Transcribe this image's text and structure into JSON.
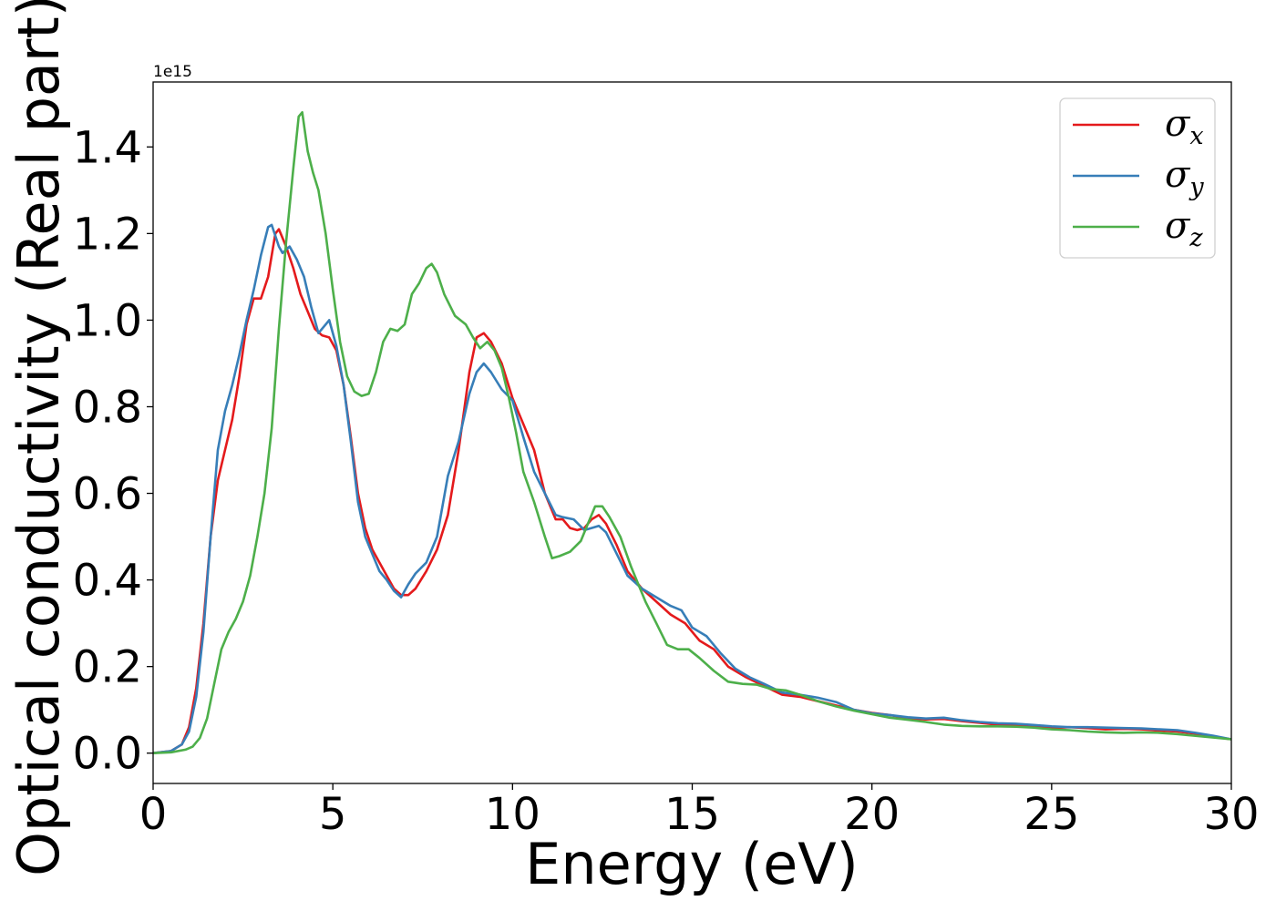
{
  "chart_data": {
    "type": "line",
    "xlabel": "Energy (eV)",
    "ylabel": "Optical conductivity (Real part)",
    "y_offset_label": "1e15",
    "xlim": [
      0,
      30
    ],
    "ylim": [
      -0.07,
      1.55
    ],
    "x_ticks": [
      0,
      5,
      10,
      15,
      20,
      25,
      30
    ],
    "x_tick_labels": [
      "0",
      "5",
      "10",
      "15",
      "20",
      "25",
      "30"
    ],
    "y_ticks": [
      0.0,
      0.2,
      0.4,
      0.6,
      0.8,
      1.0,
      1.2,
      1.4
    ],
    "y_tick_labels": [
      "0.0",
      "0.2",
      "0.4",
      "0.6",
      "0.8",
      "1.0",
      "1.2",
      "1.4"
    ],
    "grid": false,
    "legend_position": "top-right",
    "series": [
      {
        "name": "σx",
        "symbol": "σ",
        "subscript": "x",
        "color": "#e41a1c",
        "points": [
          [
            0,
            0
          ],
          [
            0.5,
            0.005
          ],
          [
            0.8,
            0.02
          ],
          [
            1.0,
            0.06
          ],
          [
            1.2,
            0.15
          ],
          [
            1.4,
            0.3
          ],
          [
            1.6,
            0.5
          ],
          [
            1.8,
            0.63
          ],
          [
            2.0,
            0.7
          ],
          [
            2.2,
            0.77
          ],
          [
            2.4,
            0.87
          ],
          [
            2.6,
            0.99
          ],
          [
            2.8,
            1.05
          ],
          [
            3.0,
            1.05
          ],
          [
            3.2,
            1.1
          ],
          [
            3.4,
            1.2
          ],
          [
            3.5,
            1.21
          ],
          [
            3.7,
            1.17
          ],
          [
            3.9,
            1.12
          ],
          [
            4.1,
            1.06
          ],
          [
            4.3,
            1.02
          ],
          [
            4.5,
            0.98
          ],
          [
            4.7,
            0.965
          ],
          [
            4.9,
            0.96
          ],
          [
            5.1,
            0.93
          ],
          [
            5.3,
            0.85
          ],
          [
            5.5,
            0.73
          ],
          [
            5.7,
            0.6
          ],
          [
            5.9,
            0.52
          ],
          [
            6.1,
            0.47
          ],
          [
            6.3,
            0.44
          ],
          [
            6.5,
            0.41
          ],
          [
            6.7,
            0.38
          ],
          [
            6.9,
            0.365
          ],
          [
            7.1,
            0.365
          ],
          [
            7.3,
            0.38
          ],
          [
            7.6,
            0.42
          ],
          [
            7.9,
            0.47
          ],
          [
            8.2,
            0.55
          ],
          [
            8.5,
            0.7
          ],
          [
            8.8,
            0.88
          ],
          [
            9.0,
            0.96
          ],
          [
            9.2,
            0.97
          ],
          [
            9.4,
            0.95
          ],
          [
            9.7,
            0.9
          ],
          [
            10.0,
            0.82
          ],
          [
            10.3,
            0.76
          ],
          [
            10.6,
            0.7
          ],
          [
            10.9,
            0.6
          ],
          [
            11.2,
            0.54
          ],
          [
            11.4,
            0.54
          ],
          [
            11.6,
            0.52
          ],
          [
            11.8,
            0.515
          ],
          [
            12.0,
            0.52
          ],
          [
            12.2,
            0.54
          ],
          [
            12.4,
            0.55
          ],
          [
            12.6,
            0.53
          ],
          [
            12.9,
            0.48
          ],
          [
            13.2,
            0.42
          ],
          [
            13.6,
            0.38
          ],
          [
            14.0,
            0.35
          ],
          [
            14.4,
            0.32
          ],
          [
            14.8,
            0.3
          ],
          [
            15.2,
            0.26
          ],
          [
            15.6,
            0.24
          ],
          [
            16.0,
            0.2
          ],
          [
            16.5,
            0.175
          ],
          [
            17.0,
            0.155
          ],
          [
            17.5,
            0.135
          ],
          [
            18.0,
            0.13
          ],
          [
            18.5,
            0.12
          ],
          [
            19.0,
            0.11
          ],
          [
            19.5,
            0.1
          ],
          [
            20.0,
            0.093
          ],
          [
            20.5,
            0.088
          ],
          [
            21.0,
            0.08
          ],
          [
            21.5,
            0.078
          ],
          [
            22.0,
            0.079
          ],
          [
            22.5,
            0.074
          ],
          [
            23.0,
            0.07
          ],
          [
            23.5,
            0.066
          ],
          [
            24.0,
            0.065
          ],
          [
            24.5,
            0.062
          ],
          [
            25.0,
            0.058
          ],
          [
            25.5,
            0.06
          ],
          [
            26.0,
            0.058
          ],
          [
            26.5,
            0.055
          ],
          [
            27.0,
            0.056
          ],
          [
            27.5,
            0.055
          ],
          [
            28.0,
            0.052
          ],
          [
            28.5,
            0.05
          ],
          [
            29.0,
            0.045
          ],
          [
            29.5,
            0.038
          ],
          [
            30.0,
            0.032
          ]
        ]
      },
      {
        "name": "σy",
        "symbol": "σ",
        "subscript": "y",
        "color": "#377eb8",
        "points": [
          [
            0,
            0
          ],
          [
            0.5,
            0.005
          ],
          [
            0.8,
            0.02
          ],
          [
            1.0,
            0.05
          ],
          [
            1.2,
            0.13
          ],
          [
            1.4,
            0.28
          ],
          [
            1.6,
            0.5
          ],
          [
            1.8,
            0.7
          ],
          [
            2.0,
            0.79
          ],
          [
            2.2,
            0.85
          ],
          [
            2.4,
            0.92
          ],
          [
            2.6,
            1.0
          ],
          [
            2.8,
            1.07
          ],
          [
            3.0,
            1.15
          ],
          [
            3.2,
            1.215
          ],
          [
            3.3,
            1.22
          ],
          [
            3.5,
            1.17
          ],
          [
            3.6,
            1.155
          ],
          [
            3.8,
            1.17
          ],
          [
            4.0,
            1.14
          ],
          [
            4.2,
            1.1
          ],
          [
            4.4,
            1.03
          ],
          [
            4.6,
            0.97
          ],
          [
            4.8,
            0.99
          ],
          [
            4.9,
            1.0
          ],
          [
            5.1,
            0.94
          ],
          [
            5.3,
            0.85
          ],
          [
            5.5,
            0.72
          ],
          [
            5.7,
            0.58
          ],
          [
            5.9,
            0.5
          ],
          [
            6.1,
            0.46
          ],
          [
            6.3,
            0.42
          ],
          [
            6.5,
            0.4
          ],
          [
            6.7,
            0.375
          ],
          [
            6.9,
            0.36
          ],
          [
            7.1,
            0.39
          ],
          [
            7.3,
            0.415
          ],
          [
            7.6,
            0.44
          ],
          [
            7.9,
            0.5
          ],
          [
            8.2,
            0.64
          ],
          [
            8.5,
            0.72
          ],
          [
            8.8,
            0.83
          ],
          [
            9.0,
            0.88
          ],
          [
            9.2,
            0.9
          ],
          [
            9.4,
            0.88
          ],
          [
            9.7,
            0.84
          ],
          [
            10.0,
            0.815
          ],
          [
            10.3,
            0.73
          ],
          [
            10.6,
            0.65
          ],
          [
            10.9,
            0.6
          ],
          [
            11.2,
            0.55
          ],
          [
            11.4,
            0.545
          ],
          [
            11.7,
            0.54
          ],
          [
            12.0,
            0.515
          ],
          [
            12.2,
            0.52
          ],
          [
            12.4,
            0.525
          ],
          [
            12.6,
            0.51
          ],
          [
            12.9,
            0.46
          ],
          [
            13.2,
            0.41
          ],
          [
            13.6,
            0.38
          ],
          [
            14.0,
            0.36
          ],
          [
            14.4,
            0.34
          ],
          [
            14.7,
            0.33
          ],
          [
            15.0,
            0.29
          ],
          [
            15.4,
            0.27
          ],
          [
            15.8,
            0.23
          ],
          [
            16.2,
            0.195
          ],
          [
            16.6,
            0.175
          ],
          [
            17.0,
            0.16
          ],
          [
            17.5,
            0.14
          ],
          [
            18.0,
            0.135
          ],
          [
            18.5,
            0.128
          ],
          [
            19.0,
            0.118
          ],
          [
            19.5,
            0.1
          ],
          [
            20.0,
            0.092
          ],
          [
            20.5,
            0.088
          ],
          [
            21.0,
            0.083
          ],
          [
            21.5,
            0.08
          ],
          [
            22.0,
            0.082
          ],
          [
            22.5,
            0.076
          ],
          [
            23.0,
            0.072
          ],
          [
            23.5,
            0.069
          ],
          [
            24.0,
            0.068
          ],
          [
            24.5,
            0.065
          ],
          [
            25.0,
            0.062
          ],
          [
            25.5,
            0.06
          ],
          [
            26.0,
            0.06
          ],
          [
            26.5,
            0.059
          ],
          [
            27.0,
            0.058
          ],
          [
            27.5,
            0.057
          ],
          [
            28.0,
            0.055
          ],
          [
            28.5,
            0.053
          ],
          [
            29.0,
            0.047
          ],
          [
            29.5,
            0.04
          ],
          [
            30.0,
            0.032
          ]
        ]
      },
      {
        "name": "σz",
        "symbol": "σ",
        "subscript": "z",
        "color": "#4daf4a",
        "points": [
          [
            0,
            0
          ],
          [
            0.5,
            0.002
          ],
          [
            0.9,
            0.008
          ],
          [
            1.1,
            0.015
          ],
          [
            1.3,
            0.035
          ],
          [
            1.5,
            0.08
          ],
          [
            1.7,
            0.16
          ],
          [
            1.9,
            0.24
          ],
          [
            2.1,
            0.28
          ],
          [
            2.3,
            0.31
          ],
          [
            2.5,
            0.35
          ],
          [
            2.7,
            0.41
          ],
          [
            2.9,
            0.5
          ],
          [
            3.1,
            0.6
          ],
          [
            3.3,
            0.75
          ],
          [
            3.5,
            0.98
          ],
          [
            3.7,
            1.18
          ],
          [
            3.9,
            1.35
          ],
          [
            4.05,
            1.47
          ],
          [
            4.15,
            1.48
          ],
          [
            4.3,
            1.39
          ],
          [
            4.45,
            1.34
          ],
          [
            4.6,
            1.3
          ],
          [
            4.8,
            1.2
          ],
          [
            5.0,
            1.07
          ],
          [
            5.2,
            0.95
          ],
          [
            5.4,
            0.87
          ],
          [
            5.6,
            0.835
          ],
          [
            5.8,
            0.825
          ],
          [
            6.0,
            0.83
          ],
          [
            6.2,
            0.88
          ],
          [
            6.4,
            0.95
          ],
          [
            6.6,
            0.98
          ],
          [
            6.8,
            0.975
          ],
          [
            7.0,
            0.99
          ],
          [
            7.2,
            1.06
          ],
          [
            7.4,
            1.085
          ],
          [
            7.6,
            1.12
          ],
          [
            7.75,
            1.13
          ],
          [
            7.9,
            1.11
          ],
          [
            8.1,
            1.06
          ],
          [
            8.4,
            1.01
          ],
          [
            8.7,
            0.99
          ],
          [
            8.9,
            0.96
          ],
          [
            9.1,
            0.935
          ],
          [
            9.3,
            0.95
          ],
          [
            9.5,
            0.93
          ],
          [
            9.7,
            0.89
          ],
          [
            9.9,
            0.82
          ],
          [
            10.1,
            0.74
          ],
          [
            10.3,
            0.65
          ],
          [
            10.6,
            0.58
          ],
          [
            10.9,
            0.5
          ],
          [
            11.1,
            0.45
          ],
          [
            11.3,
            0.455
          ],
          [
            11.6,
            0.465
          ],
          [
            11.9,
            0.49
          ],
          [
            12.1,
            0.53
          ],
          [
            12.3,
            0.57
          ],
          [
            12.5,
            0.57
          ],
          [
            12.7,
            0.545
          ],
          [
            13.0,
            0.5
          ],
          [
            13.3,
            0.43
          ],
          [
            13.7,
            0.35
          ],
          [
            14.0,
            0.3
          ],
          [
            14.3,
            0.25
          ],
          [
            14.6,
            0.24
          ],
          [
            14.9,
            0.24
          ],
          [
            15.2,
            0.22
          ],
          [
            15.6,
            0.19
          ],
          [
            16.0,
            0.165
          ],
          [
            16.4,
            0.16
          ],
          [
            16.8,
            0.158
          ],
          [
            17.2,
            0.148
          ],
          [
            17.6,
            0.145
          ],
          [
            18.0,
            0.135
          ],
          [
            18.5,
            0.12
          ],
          [
            19.0,
            0.108
          ],
          [
            19.5,
            0.098
          ],
          [
            20.0,
            0.09
          ],
          [
            20.5,
            0.082
          ],
          [
            21.0,
            0.077
          ],
          [
            21.5,
            0.072
          ],
          [
            22.0,
            0.066
          ],
          [
            22.5,
            0.063
          ],
          [
            23.0,
            0.062
          ],
          [
            23.5,
            0.062
          ],
          [
            24.0,
            0.061
          ],
          [
            24.5,
            0.059
          ],
          [
            25.0,
            0.055
          ],
          [
            25.5,
            0.053
          ],
          [
            26.0,
            0.05
          ],
          [
            26.5,
            0.048
          ],
          [
            27.0,
            0.047
          ],
          [
            27.5,
            0.048
          ],
          [
            28.0,
            0.047
          ],
          [
            28.5,
            0.044
          ],
          [
            29.0,
            0.04
          ],
          [
            29.5,
            0.036
          ],
          [
            30.0,
            0.032
          ]
        ]
      }
    ]
  }
}
